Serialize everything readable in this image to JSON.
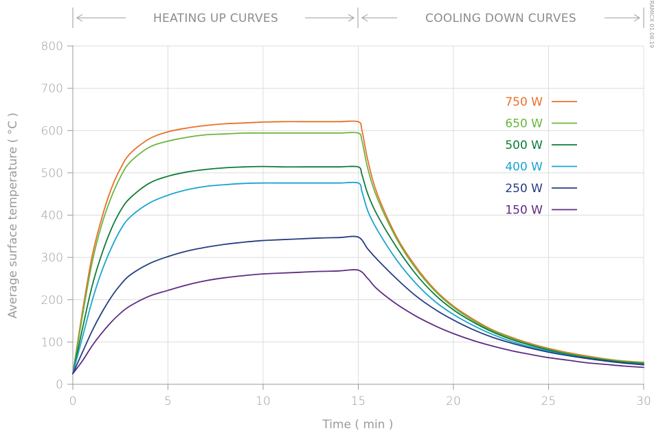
{
  "chart_data": {
    "type": "line",
    "xlabel": "Time ( min )",
    "ylabel": "Average surface temperature ( °C )",
    "xlim": [
      0,
      30
    ],
    "ylim": [
      0,
      800
    ],
    "x_ticks": [
      0,
      5,
      10,
      15,
      20,
      25,
      30
    ],
    "y_ticks": [
      0,
      100,
      200,
      300,
      400,
      500,
      600,
      700,
      800
    ],
    "grid": true,
    "legend_position": "top-right",
    "header": {
      "left_section": "HEATING UP CURVES",
      "right_section": "COOLING DOWN CURVES"
    },
    "watermark": "CERAMICX 01.08.19",
    "series": [
      {
        "name": "750 W",
        "color": "#e8702a",
        "points": [
          [
            0,
            25
          ],
          [
            0.5,
            170
          ],
          [
            1,
            300
          ],
          [
            1.5,
            390
          ],
          [
            2,
            460
          ],
          [
            2.5,
            510
          ],
          [
            3,
            545
          ],
          [
            4,
            580
          ],
          [
            5,
            597
          ],
          [
            6,
            606
          ],
          [
            7,
            612
          ],
          [
            8,
            616
          ],
          [
            9,
            618
          ],
          [
            10,
            620
          ],
          [
            11,
            621
          ],
          [
            12,
            621
          ],
          [
            13,
            621
          ],
          [
            14,
            621
          ],
          [
            15,
            621
          ],
          [
            15.2,
            600
          ],
          [
            15.5,
            530
          ],
          [
            16,
            450
          ],
          [
            17,
            350
          ],
          [
            18,
            280
          ],
          [
            19,
            225
          ],
          [
            20,
            185
          ],
          [
            21,
            155
          ],
          [
            22,
            130
          ],
          [
            23,
            112
          ],
          [
            24,
            97
          ],
          [
            25,
            85
          ],
          [
            26,
            75
          ],
          [
            27,
            67
          ],
          [
            28,
            60
          ],
          [
            29,
            55
          ],
          [
            30,
            52
          ]
        ]
      },
      {
        "name": "650 W",
        "color": "#6ab43e",
        "points": [
          [
            0,
            25
          ],
          [
            0.5,
            160
          ],
          [
            1,
            285
          ],
          [
            1.5,
            375
          ],
          [
            2,
            440
          ],
          [
            2.5,
            490
          ],
          [
            3,
            525
          ],
          [
            4,
            560
          ],
          [
            5,
            575
          ],
          [
            6,
            584
          ],
          [
            7,
            590
          ],
          [
            8,
            592
          ],
          [
            9,
            594
          ],
          [
            10,
            594
          ],
          [
            11,
            594
          ],
          [
            12,
            594
          ],
          [
            13,
            594
          ],
          [
            14,
            594
          ],
          [
            15,
            594
          ],
          [
            15.2,
            575
          ],
          [
            15.5,
            510
          ],
          [
            16,
            440
          ],
          [
            17,
            345
          ],
          [
            18,
            275
          ],
          [
            19,
            222
          ],
          [
            20,
            182
          ],
          [
            21,
            152
          ],
          [
            22,
            128
          ],
          [
            23,
            110
          ],
          [
            24,
            95
          ],
          [
            25,
            83
          ],
          [
            26,
            73
          ],
          [
            27,
            65
          ],
          [
            28,
            59
          ],
          [
            29,
            54
          ],
          [
            30,
            51
          ]
        ]
      },
      {
        "name": "500 W",
        "color": "#0e7a3a",
        "points": [
          [
            0,
            25
          ],
          [
            0.5,
            130
          ],
          [
            1,
            230
          ],
          [
            1.5,
            305
          ],
          [
            2,
            365
          ],
          [
            2.5,
            410
          ],
          [
            3,
            440
          ],
          [
            4,
            475
          ],
          [
            5,
            492
          ],
          [
            6,
            502
          ],
          [
            7,
            508
          ],
          [
            8,
            512
          ],
          [
            9,
            514
          ],
          [
            10,
            515
          ],
          [
            11,
            514
          ],
          [
            12,
            514
          ],
          [
            13,
            514
          ],
          [
            14,
            514
          ],
          [
            15,
            514
          ],
          [
            15.2,
            495
          ],
          [
            15.5,
            450
          ],
          [
            16,
            400
          ],
          [
            17,
            325
          ],
          [
            18,
            262
          ],
          [
            19,
            213
          ],
          [
            20,
            176
          ],
          [
            21,
            148
          ],
          [
            22,
            125
          ],
          [
            23,
            107
          ],
          [
            24,
            93
          ],
          [
            25,
            81
          ],
          [
            26,
            71
          ],
          [
            27,
            63
          ],
          [
            28,
            57
          ],
          [
            29,
            52
          ],
          [
            30,
            49
          ]
        ]
      },
      {
        "name": "400 W",
        "color": "#1aa3d0",
        "points": [
          [
            0,
            25
          ],
          [
            0.5,
            110
          ],
          [
            1,
            195
          ],
          [
            1.5,
            265
          ],
          [
            2,
            320
          ],
          [
            2.5,
            365
          ],
          [
            3,
            395
          ],
          [
            4,
            428
          ],
          [
            5,
            447
          ],
          [
            6,
            460
          ],
          [
            7,
            468
          ],
          [
            8,
            472
          ],
          [
            9,
            475
          ],
          [
            10,
            476
          ],
          [
            11,
            476
          ],
          [
            12,
            476
          ],
          [
            13,
            476
          ],
          [
            14,
            476
          ],
          [
            15,
            476
          ],
          [
            15.2,
            455
          ],
          [
            15.5,
            410
          ],
          [
            16,
            365
          ],
          [
            17,
            295
          ],
          [
            18,
            240
          ],
          [
            19,
            197
          ],
          [
            20,
            165
          ],
          [
            21,
            140
          ],
          [
            22,
            119
          ],
          [
            23,
            102
          ],
          [
            24,
            89
          ],
          [
            25,
            78
          ],
          [
            26,
            69
          ],
          [
            27,
            61
          ],
          [
            28,
            55
          ],
          [
            29,
            50
          ],
          [
            30,
            47
          ]
        ]
      },
      {
        "name": "250 W",
        "color": "#253d82",
        "points": [
          [
            0,
            25
          ],
          [
            0.5,
            75
          ],
          [
            1,
            125
          ],
          [
            1.5,
            168
          ],
          [
            2,
            205
          ],
          [
            2.5,
            235
          ],
          [
            3,
            258
          ],
          [
            4,
            285
          ],
          [
            5,
            302
          ],
          [
            6,
            315
          ],
          [
            7,
            324
          ],
          [
            8,
            331
          ],
          [
            9,
            336
          ],
          [
            10,
            340
          ],
          [
            11,
            342
          ],
          [
            12,
            344
          ],
          [
            13,
            346
          ],
          [
            14,
            347
          ],
          [
            15,
            348
          ],
          [
            15.5,
            320
          ],
          [
            16,
            295
          ],
          [
            17,
            250
          ],
          [
            18,
            210
          ],
          [
            19,
            178
          ],
          [
            20,
            152
          ],
          [
            21,
            130
          ],
          [
            22,
            112
          ],
          [
            23,
            98
          ],
          [
            24,
            86
          ],
          [
            25,
            76
          ],
          [
            26,
            68
          ],
          [
            27,
            61
          ],
          [
            28,
            55
          ],
          [
            29,
            50
          ],
          [
            30,
            46
          ]
        ]
      },
      {
        "name": "150 W",
        "color": "#5e2a84",
        "points": [
          [
            0,
            25
          ],
          [
            0.5,
            55
          ],
          [
            1,
            90
          ],
          [
            1.5,
            120
          ],
          [
            2,
            146
          ],
          [
            2.5,
            168
          ],
          [
            3,
            185
          ],
          [
            4,
            208
          ],
          [
            5,
            222
          ],
          [
            6,
            235
          ],
          [
            7,
            245
          ],
          [
            8,
            252
          ],
          [
            9,
            257
          ],
          [
            10,
            261
          ],
          [
            11,
            263
          ],
          [
            12,
            265
          ],
          [
            13,
            267
          ],
          [
            14,
            268
          ],
          [
            15,
            270
          ],
          [
            15.5,
            250
          ],
          [
            16,
            225
          ],
          [
            17,
            190
          ],
          [
            18,
            162
          ],
          [
            19,
            139
          ],
          [
            20,
            120
          ],
          [
            21,
            104
          ],
          [
            22,
            91
          ],
          [
            23,
            80
          ],
          [
            24,
            71
          ],
          [
            25,
            63
          ],
          [
            26,
            57
          ],
          [
            27,
            51
          ],
          [
            28,
            47
          ],
          [
            29,
            43
          ],
          [
            30,
            40
          ]
        ]
      }
    ]
  }
}
